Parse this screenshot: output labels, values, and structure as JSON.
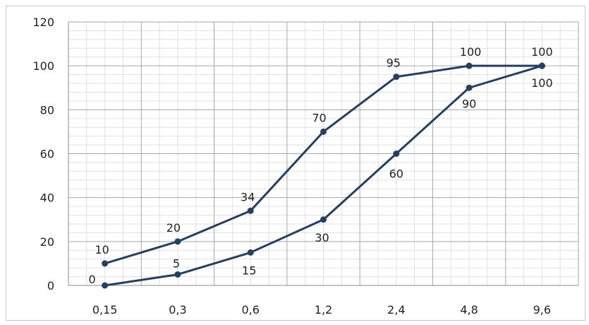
{
  "chart_data": {
    "type": "line",
    "categories": [
      "0,15",
      "0,3",
      "0,6",
      "1,2",
      "2,4",
      "4,8",
      "9,6"
    ],
    "y_ticks": [
      "0",
      "20",
      "40",
      "60",
      "80",
      "100",
      "120"
    ],
    "ylim": [
      0,
      120
    ],
    "grid": true,
    "legend": "none",
    "series": [
      {
        "values": [
          10,
          20,
          34,
          70,
          95,
          100,
          100
        ],
        "labels": [
          "10",
          "20",
          "34",
          "70",
          "95",
          "100",
          "100"
        ],
        "color": "#243f60"
      },
      {
        "values": [
          0,
          5,
          15,
          30,
          60,
          90,
          100
        ],
        "labels": [
          "0",
          "5",
          "15",
          "30",
          "60",
          "90",
          "100"
        ],
        "color": "#243f60"
      }
    ]
  }
}
